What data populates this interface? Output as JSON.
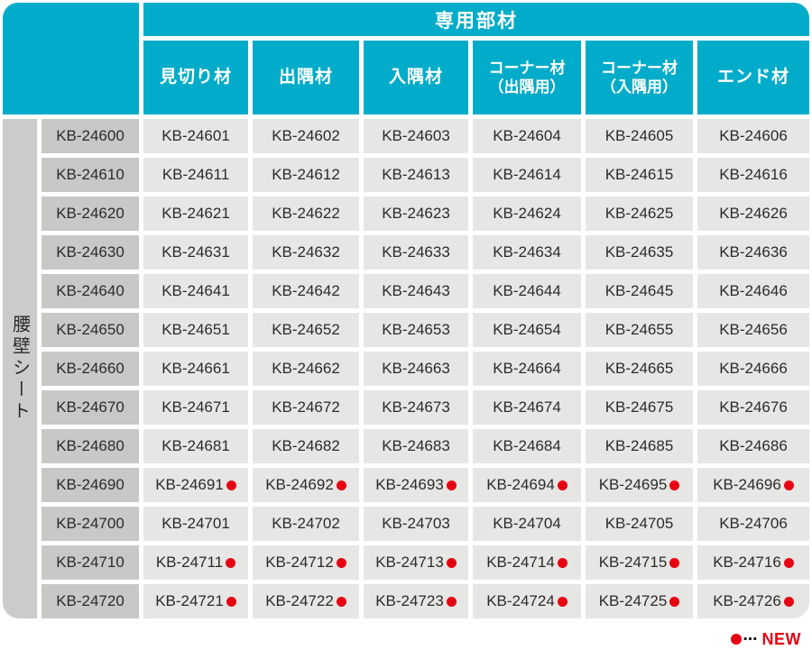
{
  "table": {
    "top_header": "専用部材",
    "side_label": "腰壁シート",
    "columns": [
      {
        "label": "見切り材"
      },
      {
        "label": "出隅材"
      },
      {
        "label": "入隅材"
      },
      {
        "label": "コーナー材",
        "sub": "（出隅用）"
      },
      {
        "label": "コーナー材",
        "sub": "（入隅用）"
      },
      {
        "label": "エンド材"
      }
    ],
    "rows": [
      {
        "header": "KB-24600",
        "new": false,
        "cells": [
          "KB-24601",
          "KB-24602",
          "KB-24603",
          "KB-24604",
          "KB-24605",
          "KB-24606"
        ]
      },
      {
        "header": "KB-24610",
        "new": false,
        "cells": [
          "KB-24611",
          "KB-24612",
          "KB-24613",
          "KB-24614",
          "KB-24615",
          "KB-24616"
        ]
      },
      {
        "header": "KB-24620",
        "new": false,
        "cells": [
          "KB-24621",
          "KB-24622",
          "KB-24623",
          "KB-24624",
          "KB-24625",
          "KB-24626"
        ]
      },
      {
        "header": "KB-24630",
        "new": false,
        "cells": [
          "KB-24631",
          "KB-24632",
          "KB-24633",
          "KB-24634",
          "KB-24635",
          "KB-24636"
        ]
      },
      {
        "header": "KB-24640",
        "new": false,
        "cells": [
          "KB-24641",
          "KB-24642",
          "KB-24643",
          "KB-24644",
          "KB-24645",
          "KB-24646"
        ]
      },
      {
        "header": "KB-24650",
        "new": false,
        "cells": [
          "KB-24651",
          "KB-24652",
          "KB-24653",
          "KB-24654",
          "KB-24655",
          "KB-24656"
        ]
      },
      {
        "header": "KB-24660",
        "new": false,
        "cells": [
          "KB-24661",
          "KB-24662",
          "KB-24663",
          "KB-24664",
          "KB-24665",
          "KB-24666"
        ]
      },
      {
        "header": "KB-24670",
        "new": false,
        "cells": [
          "KB-24671",
          "KB-24672",
          "KB-24673",
          "KB-24674",
          "KB-24675",
          "KB-24676"
        ]
      },
      {
        "header": "KB-24680",
        "new": false,
        "cells": [
          "KB-24681",
          "KB-24682",
          "KB-24683",
          "KB-24684",
          "KB-24685",
          "KB-24686"
        ]
      },
      {
        "header": "KB-24690",
        "new": true,
        "cells": [
          "KB-24691",
          "KB-24692",
          "KB-24693",
          "KB-24694",
          "KB-24695",
          "KB-24696"
        ]
      },
      {
        "header": "KB-24700",
        "new": false,
        "cells": [
          "KB-24701",
          "KB-24702",
          "KB-24703",
          "KB-24704",
          "KB-24705",
          "KB-24706"
        ]
      },
      {
        "header": "KB-24710",
        "new": true,
        "cells": [
          "KB-24711",
          "KB-24712",
          "KB-24713",
          "KB-24714",
          "KB-24715",
          "KB-24716"
        ]
      },
      {
        "header": "KB-24720",
        "new": true,
        "cells": [
          "KB-24721",
          "KB-24722",
          "KB-24723",
          "KB-24724",
          "KB-24725",
          "KB-24726"
        ]
      }
    ]
  },
  "legend": {
    "dot": "●",
    "ellipsis": "⋯",
    "label": "NEW"
  },
  "colors": {
    "teal": "#00ACC9",
    "strip_gray": "#CBCBCB",
    "row_header_gray": "#C8C8C6",
    "cell_gray": "#E6E6E4",
    "red": "#E60012",
    "text": "#2B2B2B"
  }
}
